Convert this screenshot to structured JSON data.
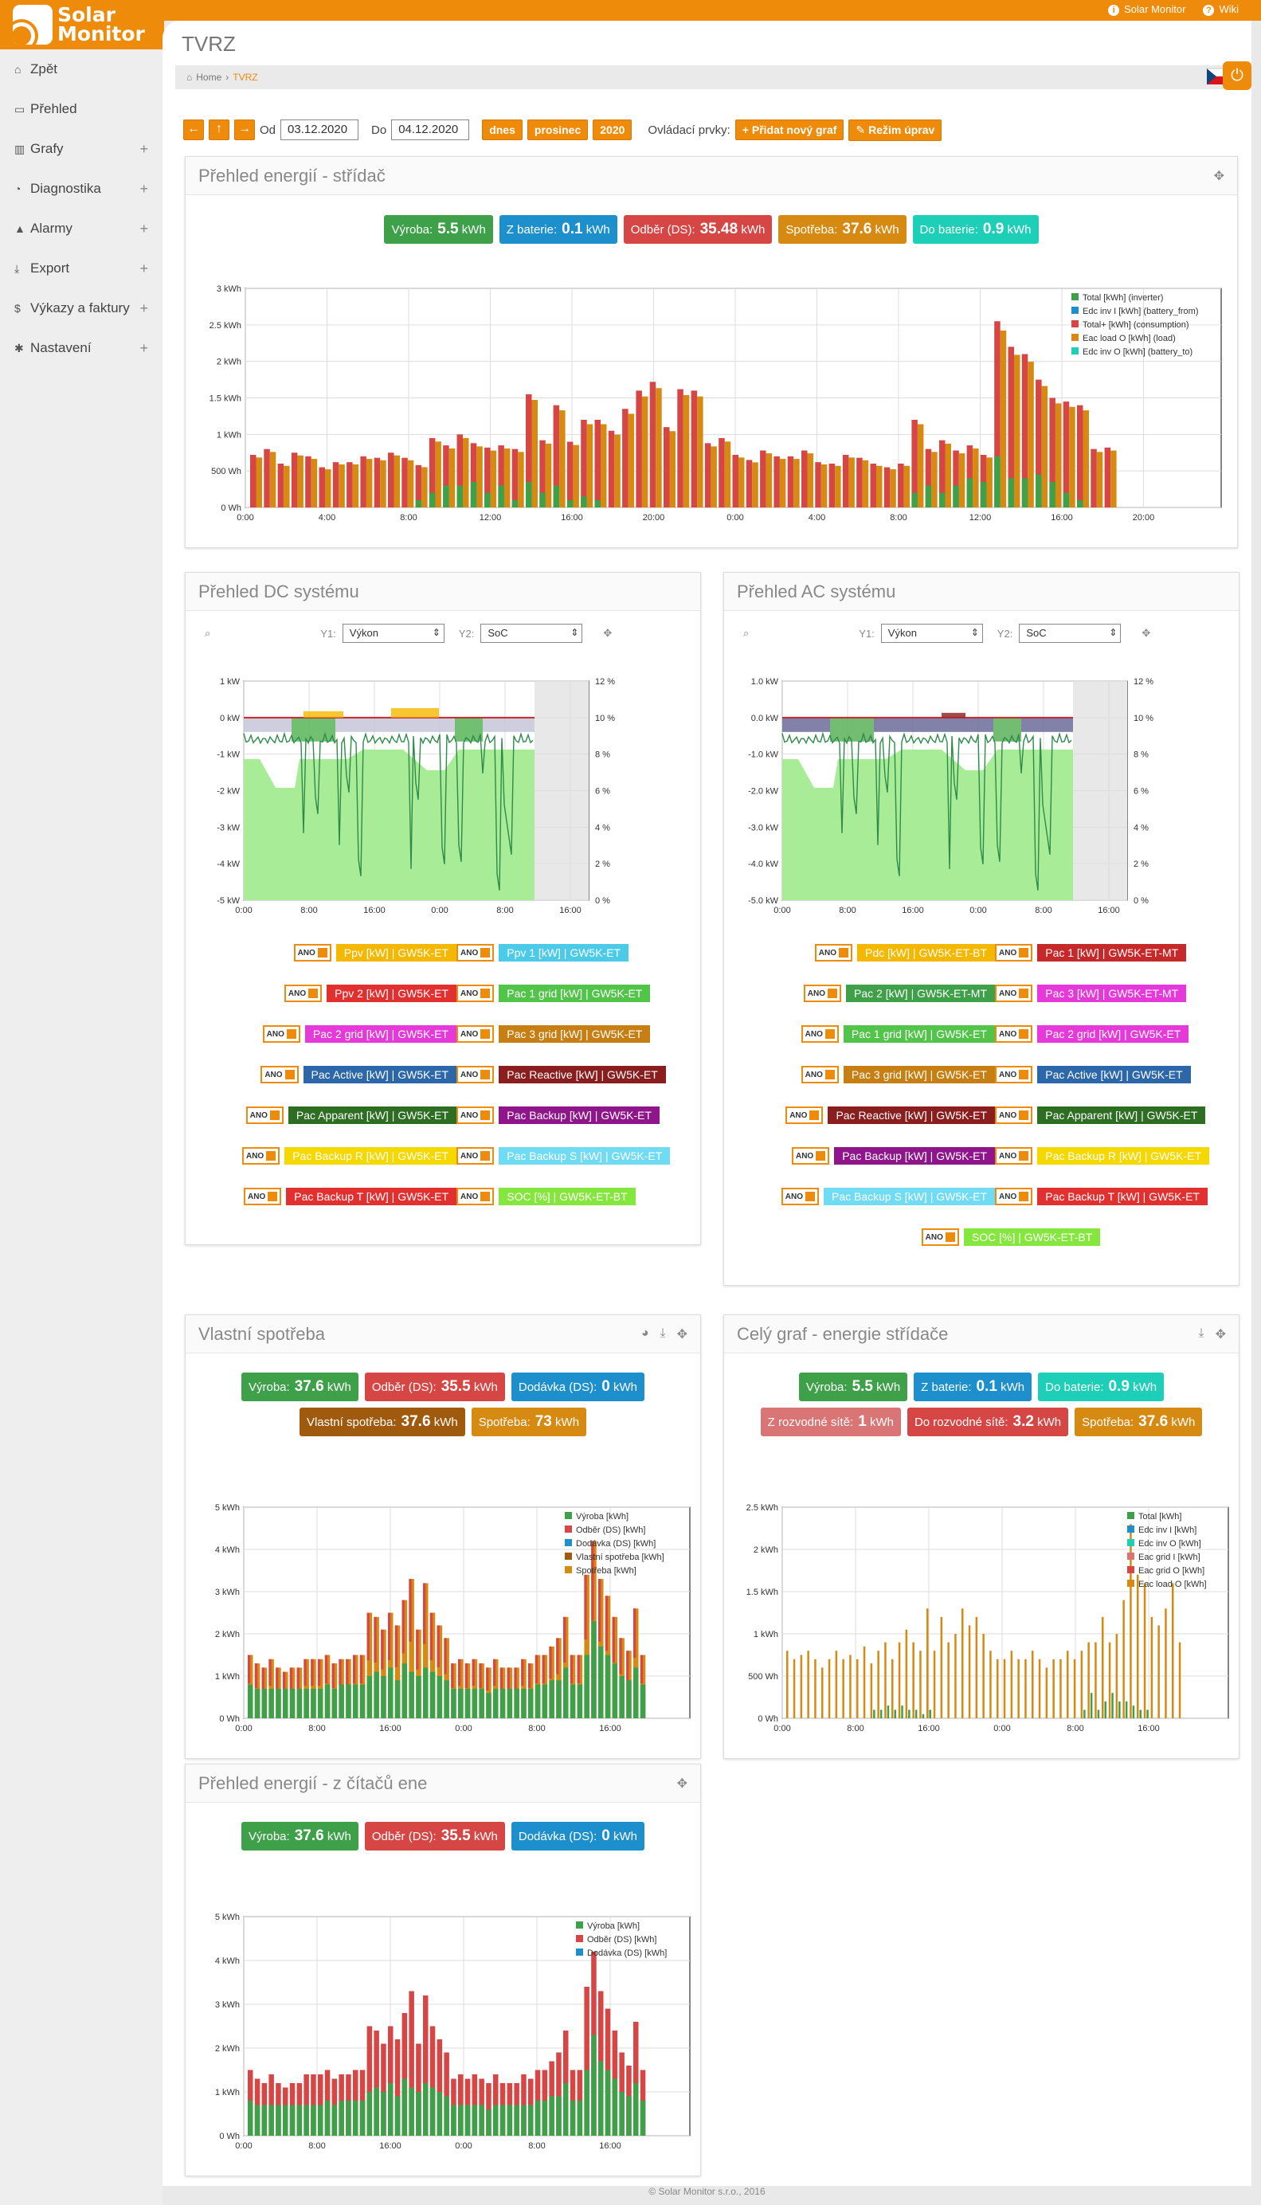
{
  "app": {
    "logo_line1": "Solar",
    "logo_line2": "Monitor",
    "top_links": [
      "Solar Monitor",
      "Wiki"
    ],
    "title": "TVRZ",
    "breadcrumb": [
      "Home",
      "TVRZ"
    ],
    "footer": "© Solar Monitor s.r.o., 2016"
  },
  "sidebar": [
    {
      "label": "Zpět",
      "icon": "home-icon",
      "plus": false
    },
    {
      "label": "Přehled",
      "icon": "monitor-icon",
      "plus": false
    },
    {
      "label": "Grafy",
      "icon": "bar-chart-icon",
      "plus": true
    },
    {
      "label": "Diagnostika",
      "icon": "lightbulb-icon",
      "plus": true
    },
    {
      "label": "Alarmy",
      "icon": "warning-icon",
      "plus": true
    },
    {
      "label": "Export",
      "icon": "download-icon",
      "plus": true
    },
    {
      "label": "Výkazy a faktury",
      "icon": "dollar-icon",
      "plus": true
    },
    {
      "label": "Nastavení",
      "icon": "gear-icon",
      "plus": true
    }
  ],
  "toolbar": {
    "od_label": "Od",
    "od_value": "03.12.2020",
    "do_label": "Do",
    "do_value": "04.12.2020",
    "dnes": "dnes",
    "prosinec": "prosinec",
    "year": "2020",
    "controls_label": "Ovládací prvky:",
    "add_graph": "Přidat nový graf",
    "edit_mode": "Režim úprav"
  },
  "panel1": {
    "title": "Přehled energií - střídač",
    "pills": [
      {
        "label": "Výroba:",
        "value": "5.5",
        "unit": "kWh",
        "color": "g"
      },
      {
        "label": "Z baterie:",
        "value": "0.1",
        "unit": "kWh",
        "color": "b"
      },
      {
        "label": "Odběr (DS):",
        "value": "35.48",
        "unit": "kWh",
        "color": "r"
      },
      {
        "label": "Spotřeba:",
        "value": "37.6",
        "unit": "kWh",
        "color": "o"
      },
      {
        "label": "Do baterie:",
        "value": "0.9",
        "unit": "kWh",
        "color": "c"
      }
    ]
  },
  "panel2": {
    "title": "Přehled DC systému",
    "y1_label": "Y1:",
    "y1_value": "Výkon",
    "y2_label": "Y2:",
    "y2_value": "SoC",
    "legend": [
      {
        "t": "Ppv [kW] | GW5K-ET",
        "c": "#f5b800"
      },
      {
        "t": "Ppv 1 [kW] | GW5K-ET",
        "c": "#4ccbe9"
      },
      {
        "t": "Ppv 2 [kW] | GW5K-ET",
        "c": "#e23030"
      },
      {
        "t": "Pac 1 grid [kW] | GW5K-ET",
        "c": "#52c44a"
      },
      {
        "t": "Pac 2 grid [kW] | GW5K-ET",
        "c": "#e53ad9"
      },
      {
        "t": "Pac 3 grid [kW] | GW5K-ET",
        "c": "#c77e12"
      },
      {
        "t": "Pac Active [kW] | GW5K-ET",
        "c": "#2c67a9"
      },
      {
        "t": "Pac Reactive [kW] | GW5K-ET",
        "c": "#8a1e1e"
      },
      {
        "t": "Pac Apparent [kW] | GW5K-ET",
        "c": "#2d6e22"
      },
      {
        "t": "Pac Backup [kW] | GW5K-ET",
        "c": "#8e168a"
      },
      {
        "t": "Pac Backup R [kW] | GW5K-ET",
        "c": "#f5d800"
      },
      {
        "t": "Pac Backup S [kW] | GW5K-ET",
        "c": "#6fdcf3"
      },
      {
        "t": "Pac Backup T [kW] | GW5K-ET",
        "c": "#e23030"
      },
      {
        "t": "SOC [%] | GW5K-ET-BT",
        "c": "#85e63e"
      }
    ]
  },
  "panel3": {
    "title": "Přehled AC systému",
    "y1_label": "Y1:",
    "y1_value": "Výkon",
    "y2_label": "Y2:",
    "y2_value": "SoC",
    "legend": [
      {
        "t": "Pdc [kW] | GW5K-ET-BT",
        "c": "#f5b800"
      },
      {
        "t": "Pac 1 [kW] | GW5K-ET-MT",
        "c": "#c62929"
      },
      {
        "t": "Pac 2 [kW] | GW5K-ET-MT",
        "c": "#3ea14a"
      },
      {
        "t": "Pac 3 [kW] | GW5K-ET-MT",
        "c": "#e53ad9"
      },
      {
        "t": "Pac 1 grid [kW] | GW5K-ET",
        "c": "#52c44a"
      },
      {
        "t": "Pac 2 grid [kW] | GW5K-ET",
        "c": "#e53ad9"
      },
      {
        "t": "Pac 3 grid [kW] | GW5K-ET",
        "c": "#c77e12"
      },
      {
        "t": "Pac Active [kW] | GW5K-ET",
        "c": "#2c67a9"
      },
      {
        "t": "Pac Reactive [kW] | GW5K-ET",
        "c": "#8a1e1e"
      },
      {
        "t": "Pac Apparent [kW] | GW5K-ET",
        "c": "#2d6e22"
      },
      {
        "t": "Pac Backup [kW] | GW5K-ET",
        "c": "#8e168a"
      },
      {
        "t": "Pac Backup R [kW] | GW5K-ET",
        "c": "#f5d800"
      },
      {
        "t": "Pac Backup S [kW] | GW5K-ET",
        "c": "#6fdcf3"
      },
      {
        "t": "Pac Backup T [kW] | GW5K-ET",
        "c": "#e23030"
      },
      {
        "t": "SOC [%] | GW5K-ET-BT",
        "c": "#85e63e"
      }
    ]
  },
  "panel4": {
    "title": "Vlastní spotřeba",
    "pills": [
      {
        "label": "Výroba:",
        "value": "37.6",
        "unit": "kWh",
        "color": "g"
      },
      {
        "label": "Odběr (DS):",
        "value": "35.5",
        "unit": "kWh",
        "color": "r"
      },
      {
        "label": "Dodávka (DS):",
        "value": "0",
        "unit": "kWh",
        "color": "b"
      },
      {
        "label": "Vlastní spotřeba:",
        "value": "37.6",
        "unit": "kWh",
        "color": "br"
      },
      {
        "label": "Spotřeba:",
        "value": "73",
        "unit": "kWh",
        "color": "o"
      }
    ]
  },
  "panel5": {
    "title": "Celý graf - energie střídače",
    "pills": [
      {
        "label": "Výroba:",
        "value": "5.5",
        "unit": "kWh",
        "color": "g"
      },
      {
        "label": "Z baterie:",
        "value": "0.1",
        "unit": "kWh",
        "color": "b"
      },
      {
        "label": "Do baterie:",
        "value": "0.9",
        "unit": "kWh",
        "color": "c"
      },
      {
        "label": "Z rozvodné sítě:",
        "value": "1",
        "unit": "kWh",
        "color": "pk"
      },
      {
        "label": "Do rozvodné sítě:",
        "value": "3.2",
        "unit": "kWh",
        "color": "r"
      },
      {
        "label": "Spotřeba:",
        "value": "37.6",
        "unit": "kWh",
        "color": "o"
      }
    ]
  },
  "panel6": {
    "title": "Přehled energií - z čítačů ene",
    "pills": [
      {
        "label": "Výroba:",
        "value": "37.6",
        "unit": "kWh",
        "color": "g"
      },
      {
        "label": "Odběr (DS):",
        "value": "35.5",
        "unit": "kWh",
        "color": "r"
      },
      {
        "label": "Dodávka (DS):",
        "value": "0",
        "unit": "kWh",
        "color": "b"
      }
    ]
  },
  "chart_data": [
    {
      "id": "c1",
      "type": "bar",
      "ylim": [
        0,
        3
      ],
      "yticks": [
        "0 Wh",
        "500 Wh",
        "1 kWh",
        "1.5 kWh",
        "2 kWh",
        "2.5 kWh",
        "3 kWh"
      ],
      "xticks": [
        "0:00",
        "4:00",
        "8:00",
        "12:00",
        "16:00",
        "20:00",
        "0:00",
        "4:00",
        "8:00",
        "12:00",
        "16:00",
        "20:00"
      ],
      "legend": [
        {
          "name": "Total [kWh] (inverter)",
          "color": "#3ea14a"
        },
        {
          "name": "Edc inv I [kWh] (battery_from)",
          "color": "#1c8fcc"
        },
        {
          "name": "Total+ [kWh] (consumption)",
          "color": "#d54645"
        },
        {
          "name": "Eac load O [kWh] (load)",
          "color": "#d78a12"
        },
        {
          "name": "Edc inv O [kWh] (battery_to)",
          "color": "#1ecfb7"
        }
      ],
      "consumption": [
        0.72,
        0.8,
        0.6,
        0.75,
        0.7,
        0.55,
        0.62,
        0.62,
        0.7,
        0.68,
        0.75,
        0.68,
        0.58,
        0.95,
        0.85,
        1.0,
        0.88,
        0.82,
        0.85,
        0.8,
        1.55,
        0.92,
        1.4,
        0.9,
        1.2,
        1.2,
        1.05,
        1.35,
        1.6,
        1.72,
        1.1,
        1.62,
        1.6,
        0.88,
        0.95,
        0.72,
        0.65,
        0.78,
        0.7,
        0.7,
        0.78,
        0.62,
        0.6,
        0.72,
        0.68,
        0.6,
        0.55,
        0.6,
        1.2,
        0.8,
        0.92,
        0.78,
        0.85,
        0.72,
        2.55,
        2.2,
        2.1,
        1.75,
        1.5,
        1.45,
        1.4,
        0.8,
        0.82
      ],
      "production": [
        0,
        0,
        0,
        0,
        0,
        0,
        0,
        0,
        0,
        0,
        0,
        0,
        0.1,
        0.2,
        0.3,
        0.3,
        0.35,
        0.2,
        0.3,
        0.1,
        0.35,
        0.2,
        0.3,
        0.1,
        0.15,
        0.1,
        0,
        0,
        0,
        0,
        0,
        0,
        0,
        0,
        0,
        0,
        0,
        0,
        0,
        0,
        0,
        0,
        0,
        0,
        0,
        0,
        0,
        0,
        0.2,
        0.3,
        0.2,
        0.3,
        0.4,
        0.35,
        0.7,
        0.4,
        0.4,
        0.45,
        0.35,
        0.2,
        0.1,
        0,
        0
      ]
    },
    {
      "id": "c4",
      "type": "bar",
      "ylim": [
        0,
        5
      ],
      "yticks": [
        "0 Wh",
        "1 kWh",
        "2 kWh",
        "3 kWh",
        "4 kWh",
        "5 kWh"
      ],
      "xticks": [
        "0:00",
        "8:00",
        "16:00",
        "0:00",
        "8:00",
        "16:00"
      ],
      "legend": [
        {
          "name": "Výroba [kWh]",
          "color": "#3ea14a"
        },
        {
          "name": "Odběr (DS) [kWh]",
          "color": "#d54645"
        },
        {
          "name": "Dodávka (DS) [kWh]",
          "color": "#1c8fcc"
        },
        {
          "name": "Vlastní spotřeba [kWh]",
          "color": "#a05a0e"
        },
        {
          "name": "Spotřeba [kWh]",
          "color": "#d78a12"
        }
      ],
      "consumption": [
        1.5,
        1.3,
        1.2,
        1.4,
        1.2,
        1.1,
        1.2,
        1.2,
        1.4,
        1.4,
        1.4,
        1.5,
        1.3,
        1.4,
        1.4,
        1.5,
        1.5,
        2.5,
        2.4,
        2.1,
        2.5,
        2.2,
        2.8,
        3.3,
        2.1,
        3.2,
        2.5,
        2.2,
        1.9,
        1.3,
        1.4,
        1.3,
        1.4,
        1.3,
        1.2,
        1.4,
        1.2,
        1.2,
        1.2,
        1.4,
        1.3,
        1.5,
        1.5,
        1.7,
        1.9,
        2.4,
        1.5,
        1.5,
        3.4,
        4.2,
        3.3,
        2.9,
        2.4,
        1.9,
        1.6,
        2.6,
        1.5
      ],
      "production": [
        0.8,
        0.7,
        0.7,
        0.7,
        0.7,
        0.7,
        0.7,
        0.7,
        0.7,
        0.7,
        0.7,
        0.8,
        0.7,
        0.8,
        0.8,
        0.8,
        0.8,
        1.0,
        1.1,
        1.0,
        1.2,
        0.9,
        1.3,
        1.1,
        1.0,
        1.2,
        1.1,
        1.0,
        0.9,
        0.7,
        0.7,
        0.7,
        0.7,
        0.7,
        0.6,
        0.7,
        0.7,
        0.7,
        0.7,
        0.7,
        0.7,
        0.8,
        0.8,
        0.9,
        0.9,
        1.2,
        0.8,
        0.8,
        1.5,
        2.3,
        1.7,
        1.5,
        1.3,
        1.0,
        0.9,
        1.2,
        0.8
      ]
    },
    {
      "id": "c5",
      "type": "bar",
      "ylim": [
        0,
        2.5
      ],
      "yticks": [
        "0 Wh",
        "500 Wh",
        "1 kWh",
        "1.5 kWh",
        "2 kWh",
        "2.5 kWh"
      ],
      "xticks": [
        "0:00",
        "8:00",
        "16:00",
        "0:00",
        "8:00",
        "16:00"
      ],
      "legend": [
        {
          "name": "Total [kWh]",
          "color": "#3ea14a"
        },
        {
          "name": "Edc inv I [kWh]",
          "color": "#1c8fcc"
        },
        {
          "name": "Edc inv O [kWh]",
          "color": "#1ecfb7"
        },
        {
          "name": "Eac grid I [kWh]",
          "color": "#d97575"
        },
        {
          "name": "Eac grid O [kWh]",
          "color": "#d54645"
        },
        {
          "name": "Eac load O [kWh]",
          "color": "#d78a12"
        }
      ],
      "consumption": [
        0.8,
        0.7,
        0.75,
        0.8,
        0.7,
        0.6,
        0.7,
        0.8,
        0.7,
        0.75,
        0.7,
        0.85,
        0.65,
        0.8,
        0.9,
        0.7,
        0.9,
        1.05,
        0.9,
        0.8,
        1.3,
        0.8,
        1.2,
        0.9,
        1.0,
        1.3,
        1.1,
        1.2,
        1.0,
        0.8,
        0.7,
        0.7,
        0.8,
        0.7,
        0.7,
        0.8,
        0.7,
        0.6,
        0.7,
        0.7,
        0.8,
        0.7,
        0.8,
        0.9,
        0.9,
        1.2,
        0.9,
        1.0,
        1.4,
        2.3,
        1.7,
        1.6,
        1.2,
        1.1,
        1.3,
        1.6,
        0.9
      ],
      "production": [
        0,
        0,
        0,
        0,
        0,
        0,
        0,
        0,
        0,
        0,
        0,
        0,
        0.1,
        0.1,
        0.15,
        0.1,
        0.15,
        0.1,
        0.1,
        0.05,
        0.1,
        0,
        0,
        0,
        0,
        0,
        0,
        0,
        0,
        0,
        0,
        0,
        0,
        0,
        0,
        0,
        0,
        0,
        0,
        0,
        0,
        0,
        0.1,
        0.3,
        0.1,
        0.2,
        0.3,
        0.2,
        0.2,
        0.15,
        0.1,
        0.1,
        0,
        0,
        0,
        0,
        0
      ]
    },
    {
      "id": "c6",
      "type": "bar",
      "ylim": [
        0,
        5
      ],
      "yticks": [
        "0 Wh",
        "1 kWh",
        "2 kWh",
        "3 kWh",
        "4 kWh",
        "5 kWh"
      ],
      "xticks": [
        "0:00",
        "8:00",
        "16:00",
        "0:00",
        "8:00",
        "16:00"
      ],
      "legend": [
        {
          "name": "Výroba [kWh]",
          "color": "#3ea14a"
        },
        {
          "name": "Odběr (DS) [kWh]",
          "color": "#d54645"
        },
        {
          "name": "Dodávka (DS) [kWh]",
          "color": "#1c8fcc"
        }
      ],
      "consumption": [
        1.5,
        1.3,
        1.2,
        1.4,
        1.2,
        1.1,
        1.2,
        1.2,
        1.4,
        1.4,
        1.4,
        1.5,
        1.3,
        1.4,
        1.4,
        1.5,
        1.5,
        2.5,
        2.4,
        2.1,
        2.5,
        2.2,
        2.8,
        3.3,
        2.1,
        3.2,
        2.5,
        2.2,
        1.9,
        1.3,
        1.4,
        1.3,
        1.4,
        1.3,
        1.2,
        1.4,
        1.2,
        1.2,
        1.2,
        1.4,
        1.3,
        1.5,
        1.5,
        1.7,
        1.9,
        2.4,
        1.5,
        1.5,
        3.4,
        4.2,
        3.3,
        2.9,
        2.4,
        1.9,
        1.6,
        2.6,
        1.5
      ],
      "production": [
        0.8,
        0.7,
        0.7,
        0.7,
        0.7,
        0.7,
        0.7,
        0.7,
        0.7,
        0.7,
        0.7,
        0.8,
        0.7,
        0.8,
        0.8,
        0.8,
        0.8,
        1.0,
        1.1,
        1.0,
        1.2,
        0.9,
        1.3,
        1.1,
        1.0,
        1.2,
        1.1,
        1.0,
        0.9,
        0.7,
        0.7,
        0.7,
        0.7,
        0.7,
        0.6,
        0.7,
        0.7,
        0.7,
        0.7,
        0.7,
        0.7,
        0.8,
        0.8,
        0.9,
        0.9,
        1.2,
        0.8,
        0.8,
        1.5,
        2.3,
        1.7,
        1.5,
        1.3,
        1.0,
        0.9,
        1.2,
        0.8
      ]
    },
    {
      "id": "c2",
      "type": "area",
      "y1_ticks": [
        "1 kW",
        "0 kW",
        "-1 kW",
        "-2 kW",
        "-3 kW",
        "-4 kW",
        "-5 kW"
      ],
      "y2_ticks": [
        "12 %",
        "10 %",
        "8 %",
        "6 %",
        "4 %",
        "2 %",
        "0 %"
      ],
      "xticks": [
        "0:00",
        "8:00",
        "16:00",
        "0:00",
        "8:00",
        "16:00"
      ]
    },
    {
      "id": "c3",
      "type": "area",
      "y1_ticks": [
        "1.0 kW",
        "0.0 kW",
        "-1.0 kW",
        "-2.0 kW",
        "-3.0 kW",
        "-4.0 kW",
        "-5.0 kW"
      ],
      "y2_ticks": [
        "12 %",
        "10 %",
        "8 %",
        "6 %",
        "4 %",
        "2 %",
        "0 %"
      ],
      "xticks": [
        "0:00",
        "8:00",
        "16:00",
        "0:00",
        "8:00",
        "16:00"
      ]
    }
  ]
}
